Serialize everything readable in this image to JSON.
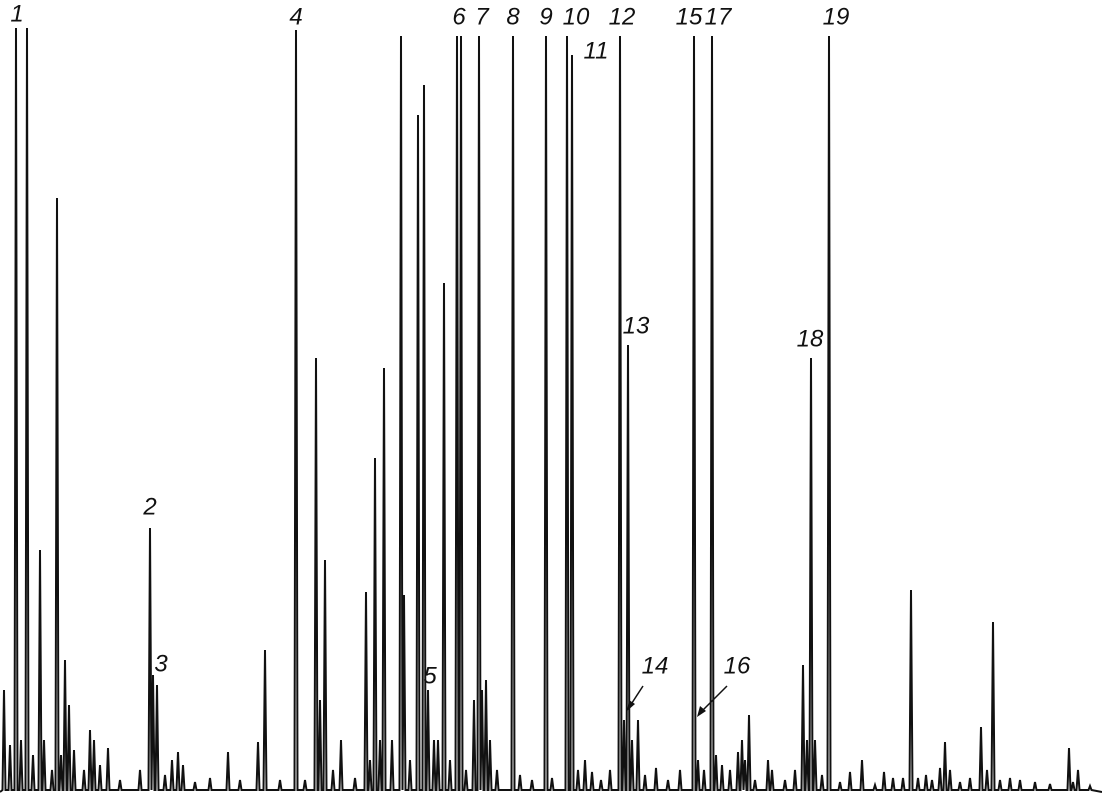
{
  "peak_labels": [
    "1",
    "2",
    "3",
    "4",
    "5",
    "6",
    "7",
    "8",
    "9",
    "10",
    "11",
    "12",
    "13",
    "14",
    "15",
    "16",
    "17",
    "18",
    "19"
  ]
}
